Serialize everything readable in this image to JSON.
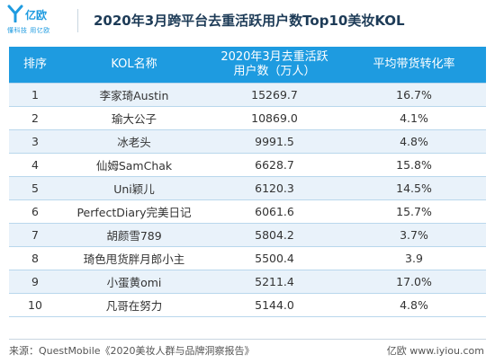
{
  "brand": {
    "name": "亿欧",
    "tagline": "懂科技 用亿欧",
    "color": "#1e9be0"
  },
  "title": "2020年3月跨平台去重活跃用户数Top10美妆KOL",
  "table": {
    "headers": {
      "rank": "排序",
      "name": "KOL名称",
      "users_line1": "2020年3月去重活跃",
      "users_line2": "用户数（万人）",
      "ratio": "平均带货转化率"
    },
    "rows": [
      {
        "rank": "1",
        "name": "李家琦Austin",
        "users": "15269.7",
        "ratio": "16.7%"
      },
      {
        "rank": "2",
        "name": "瑜大公子",
        "users": "10869.0",
        "ratio": "4.1%"
      },
      {
        "rank": "3",
        "name": "冰老头",
        "users": "9991.5",
        "ratio": "4.8%"
      },
      {
        "rank": "4",
        "name": "仙姆SamChak",
        "users": "6628.7",
        "ratio": "15.8%"
      },
      {
        "rank": "5",
        "name": "Uni颖儿",
        "users": "6120.3",
        "ratio": "14.5%"
      },
      {
        "rank": "6",
        "name": "PerfectDiary完美日记",
        "users": "6061.6",
        "ratio": "15.7%"
      },
      {
        "rank": "7",
        "name": "胡颜雪789",
        "users": "5804.2",
        "ratio": "3.7%"
      },
      {
        "rank": "8",
        "name": "琦色甩货胖月郎小主",
        "users": "5500.4",
        "ratio": "3.9"
      },
      {
        "rank": "9",
        "name": "小蛋黄omi",
        "users": "5211.4",
        "ratio": "17.0%"
      },
      {
        "rank": "10",
        "name": "凡哥在努力",
        "users": "5144.0",
        "ratio": "4.8%"
      }
    ]
  },
  "footer": {
    "source": "来源：QuestMobile《2020美妆人群与品牌洞察报告》",
    "site": "亿欧 www.iyiou.com"
  }
}
